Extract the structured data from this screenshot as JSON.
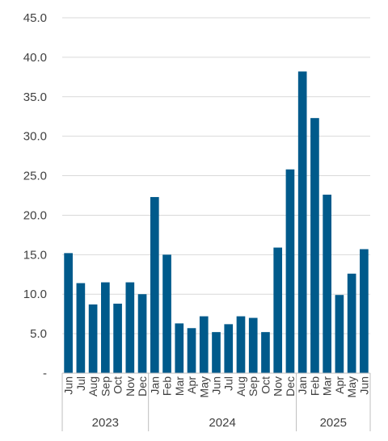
{
  "chart_data": {
    "type": "bar",
    "title": "",
    "xlabel": "",
    "ylabel": "",
    "ylim": [
      0,
      45
    ],
    "yticks": [
      "-",
      "5.0",
      "10.0",
      "15.0",
      "20.0",
      "25.0",
      "30.0",
      "35.0",
      "40.0",
      "45.0"
    ],
    "grid": true,
    "legend": "none",
    "bar_color": "#005A8B",
    "categories": [
      "Jun",
      "Jul",
      "Aug",
      "Sep",
      "Oct",
      "Nov",
      "Dec",
      "Jan",
      "Feb",
      "Mar",
      "Apr",
      "May",
      "Jun",
      "Jul",
      "Aug",
      "Sep",
      "Oct",
      "Nov",
      "Dec",
      "Jan",
      "Feb",
      "Mar",
      "Apr",
      "May",
      "Jun"
    ],
    "values": [
      15.2,
      11.4,
      8.7,
      11.5,
      8.8,
      11.5,
      10.0,
      22.3,
      15.0,
      6.3,
      5.7,
      7.2,
      5.2,
      6.2,
      7.2,
      7.0,
      5.2,
      15.9,
      25.8,
      38.2,
      32.3,
      22.6,
      9.9,
      12.6,
      15.7
    ],
    "groups": [
      {
        "label": "2023",
        "count": 7
      },
      {
        "label": "2024",
        "count": 12
      },
      {
        "label": "2025",
        "count": 6
      }
    ]
  }
}
